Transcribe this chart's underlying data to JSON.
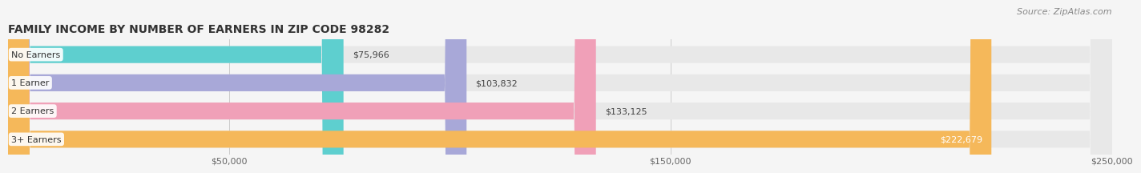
{
  "title": "FAMILY INCOME BY NUMBER OF EARNERS IN ZIP CODE 98282",
  "source": "Source: ZipAtlas.com",
  "categories": [
    "No Earners",
    "1 Earner",
    "2 Earners",
    "3+ Earners"
  ],
  "values": [
    75966,
    103832,
    133125,
    222679
  ],
  "bar_colors": [
    "#5ecfcf",
    "#a8a8d8",
    "#f0a0b8",
    "#f5b85a"
  ],
  "xmin": 0,
  "xmax": 250000,
  "xticks": [
    50000,
    150000,
    250000
  ],
  "xtick_labels": [
    "$50,000",
    "$150,000",
    "$250,000"
  ],
  "background_color": "#f5f5f5",
  "bar_background": "#e8e8e8",
  "title_fontsize": 10,
  "source_fontsize": 8,
  "value_fontsize": 8,
  "category_fontsize": 8
}
